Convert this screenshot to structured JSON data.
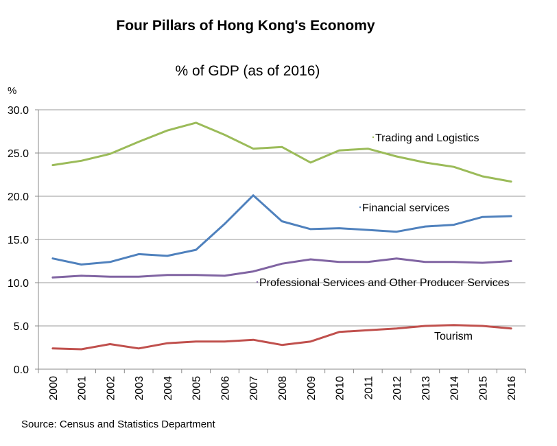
{
  "chart_data": {
    "type": "line",
    "title": "Four Pillars of Hong Kong's Economy",
    "subtitle": "% of GDP (as of 2016)",
    "ylabel": "%",
    "xlabel": "",
    "ylim": [
      0,
      30
    ],
    "yticks": [
      "0.0",
      "5.0",
      "10.0",
      "15.0",
      "20.0",
      "25.0",
      "30.0"
    ],
    "ytick_values": [
      0,
      5,
      10,
      15,
      20,
      25,
      30
    ],
    "categories": [
      "2000",
      "2001",
      "2002",
      "2003",
      "2004",
      "2005",
      "2006",
      "2007",
      "2008",
      "2009",
      "2010",
      "2011",
      "2012",
      "2013",
      "2014",
      "2015",
      "2016"
    ],
    "grid": true,
    "series": [
      {
        "name": "Trading and Logistics",
        "color": "#9BBB59",
        "values": [
          23.6,
          24.1,
          24.9,
          26.3,
          27.6,
          28.5,
          27.1,
          25.5,
          25.7,
          23.9,
          25.3,
          25.5,
          24.6,
          23.9,
          23.4,
          22.3,
          21.7
        ]
      },
      {
        "name": "Financial services",
        "color": "#4F81BD",
        "values": [
          12.8,
          12.1,
          12.4,
          13.3,
          13.1,
          13.8,
          16.8,
          20.1,
          17.1,
          16.2,
          16.3,
          16.1,
          15.9,
          16.5,
          16.7,
          17.6,
          17.7
        ]
      },
      {
        "name": "Professional Services and Other Producer Services",
        "color": "#8064A2",
        "values": [
          10.6,
          10.8,
          10.7,
          10.7,
          10.9,
          10.9,
          10.8,
          11.3,
          12.2,
          12.7,
          12.4,
          12.4,
          12.8,
          12.4,
          12.4,
          12.3,
          12.5
        ]
      },
      {
        "name": "Tourism",
        "color": "#C0504D",
        "values": [
          2.4,
          2.3,
          2.9,
          2.4,
          3.0,
          3.2,
          3.2,
          3.4,
          2.8,
          3.2,
          4.3,
          4.5,
          4.7,
          5.0,
          5.1,
          5.0,
          4.7
        ]
      }
    ],
    "source": "Source: Census and Statistics Department"
  }
}
